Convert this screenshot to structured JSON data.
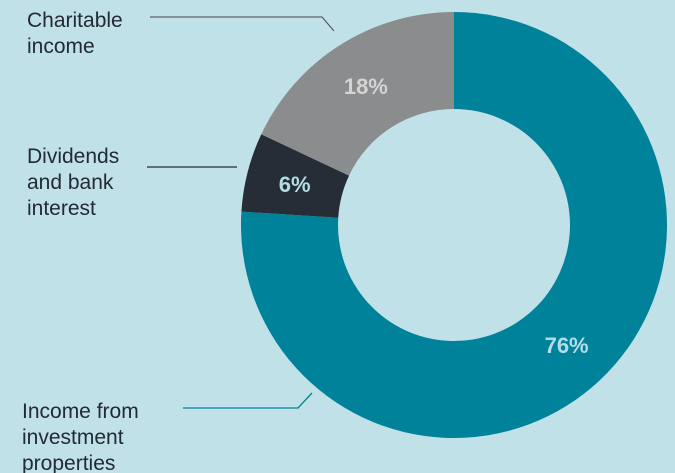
{
  "chart_data": {
    "type": "pie",
    "variant": "donut",
    "title": "",
    "series": [
      {
        "name": "",
        "slices": [
          {
            "label": "Income from investment properties",
            "label_lines": [
              "Income from",
              "investment",
              "properties"
            ],
            "value": 76,
            "display": "76%",
            "color": "#00829b",
            "text_color": "#b3dde6"
          },
          {
            "label": "Dividends and bank interest",
            "label_lines": [
              "Dividends",
              "and bank",
              "interest"
            ],
            "value": 6,
            "display": "6%",
            "color": "#262d36",
            "text_color": "#b3dde6"
          },
          {
            "label": "Charitable income",
            "label_lines": [
              "Charitable",
              "income"
            ],
            "value": 18,
            "display": "18%",
            "color": "#8a8c8e",
            "text_color": "#d4d4d4"
          }
        ]
      }
    ],
    "start": "12 o'clock",
    "direction": "clockwise",
    "background_color": "#c1e1e8",
    "leader_line_color": "#00829b"
  }
}
